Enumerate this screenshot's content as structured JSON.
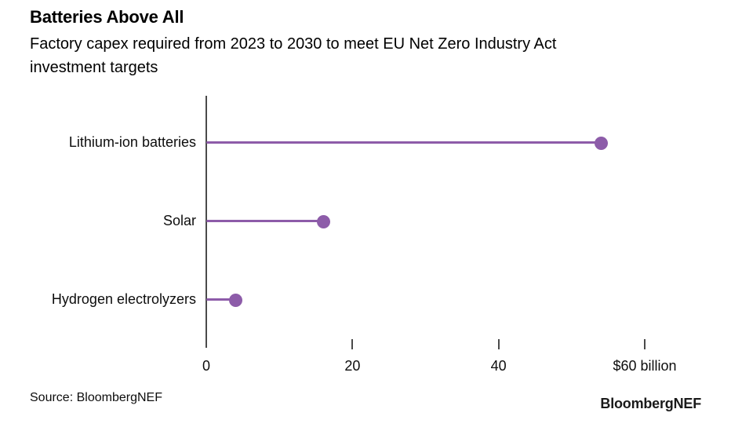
{
  "header": {
    "title": "Batteries Above All",
    "subtitle_lines": [
      "Factory capex required from 2023 to 2030 to meet EU Net Zero Industry Act",
      "investment targets"
    ]
  },
  "chart_data": {
    "type": "bar",
    "variant": "horizontal-lollipop",
    "title": "Batteries Above All",
    "subtitle": "Factory capex required from 2023 to 2030 to meet EU Net Zero Industry Act investment targets",
    "categories": [
      "Lithium-ion batteries",
      "Solar",
      "Hydrogen electrolyzers"
    ],
    "values": [
      54,
      16,
      4
    ],
    "unit": "$ billion",
    "xlabel": "",
    "ylabel": "",
    "xlim": [
      0,
      60
    ],
    "xticks": {
      "values": [
        0,
        20,
        40,
        60
      ],
      "labels": [
        "0",
        "20",
        "40",
        "$60 billion"
      ]
    },
    "grid": false,
    "legend": false
  },
  "footer": {
    "source": "Source: BloombergNEF",
    "brand": "BloombergNEF"
  },
  "colors": {
    "accent_purple": "#8d5ca9",
    "axis": "#4a4a4a",
    "text": "#000000"
  }
}
